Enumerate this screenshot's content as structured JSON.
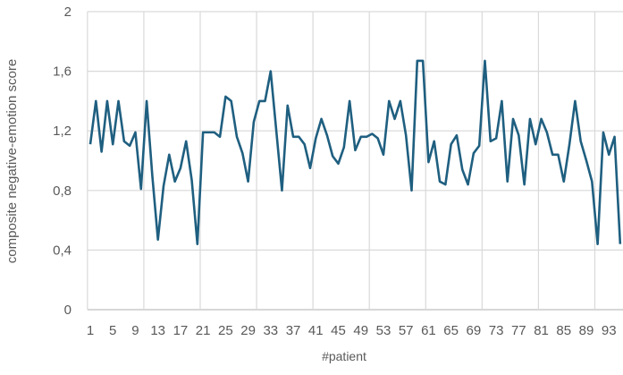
{
  "chart_data": {
    "type": "line",
    "title": "",
    "xlabel": "#patient",
    "ylabel": "composite negative-emotion score",
    "ylim": [
      0,
      2
    ],
    "y_ticks": [
      "0",
      "0,4",
      "0,8",
      "1,2",
      "1,6",
      "2"
    ],
    "y_tick_values": [
      0,
      0.4,
      0.8,
      1.2,
      1.6,
      2
    ],
    "x_tick_labels": [
      "1",
      "5",
      "9",
      "13",
      "17",
      "21",
      "25",
      "29",
      "33",
      "37",
      "41",
      "45",
      "49",
      "53",
      "57",
      "61",
      "65",
      "69",
      "73",
      "77",
      "81",
      "85",
      "89",
      "93"
    ],
    "grid": true,
    "legend": "none",
    "line_color": "#1f5f80",
    "x": [
      1,
      2,
      3,
      4,
      5,
      6,
      7,
      8,
      9,
      10,
      11,
      12,
      13,
      14,
      15,
      16,
      17,
      18,
      19,
      20,
      21,
      22,
      23,
      24,
      25,
      26,
      27,
      28,
      29,
      30,
      31,
      32,
      33,
      34,
      35,
      36,
      37,
      38,
      39,
      40,
      41,
      42,
      43,
      44,
      45,
      46,
      47,
      48,
      49,
      50,
      51,
      52,
      53,
      54,
      55,
      56,
      57,
      58,
      59,
      60,
      61,
      62,
      63,
      64,
      65,
      66,
      67,
      68,
      69,
      70,
      71,
      72,
      73,
      74,
      75,
      76,
      77,
      78,
      79,
      80,
      81,
      82,
      83,
      84,
      85,
      86,
      87,
      88,
      89,
      90,
      91,
      92,
      93,
      94,
      95
    ],
    "values": [
      1.11,
      1.4,
      1.06,
      1.4,
      1.11,
      1.4,
      1.13,
      1.1,
      1.19,
      0.81,
      1.4,
      0.9,
      0.47,
      0.83,
      1.04,
      0.86,
      0.95,
      1.13,
      0.87,
      0.44,
      1.19,
      1.19,
      1.19,
      1.16,
      1.43,
      1.4,
      1.16,
      1.05,
      0.86,
      1.26,
      1.4,
      1.4,
      1.6,
      1.2,
      0.8,
      1.37,
      1.16,
      1.16,
      1.11,
      0.95,
      1.15,
      1.28,
      1.17,
      1.03,
      0.98,
      1.09,
      1.4,
      1.07,
      1.16,
      1.16,
      1.18,
      1.15,
      1.04,
      1.4,
      1.28,
      1.4,
      1.17,
      0.8,
      1.67,
      1.67,
      0.99,
      1.13,
      0.86,
      0.84,
      1.11,
      1.17,
      0.94,
      0.84,
      1.05,
      1.1,
      1.67,
      1.13,
      1.15,
      1.4,
      0.86,
      1.28,
      1.17,
      0.84,
      1.28,
      1.11,
      1.28,
      1.19,
      1.04,
      1.04,
      0.86,
      1.11,
      1.4,
      1.13,
      1.0,
      0.86,
      0.44,
      1.19,
      1.04,
      1.16,
      0.44
    ]
  }
}
